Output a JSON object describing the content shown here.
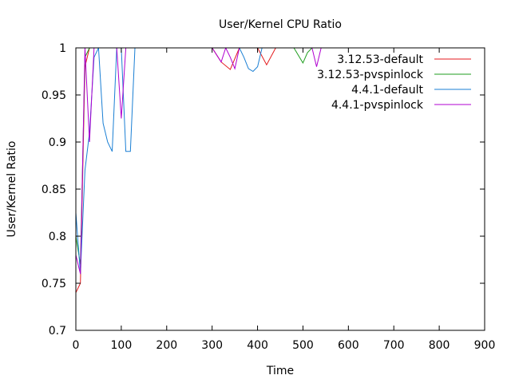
{
  "chart_data": {
    "type": "line",
    "title": "User/Kernel CPU Ratio",
    "xlabel": "Time",
    "ylabel": "User/Kernel Ratio",
    "xlim": [
      0,
      900
    ],
    "ylim": [
      0.7,
      1.0
    ],
    "xticks": [
      0,
      100,
      200,
      300,
      400,
      500,
      600,
      700,
      800,
      900
    ],
    "xtick_labels": [
      "0",
      "100",
      "200",
      "300",
      "400",
      "500",
      "600",
      "700",
      "800",
      "900"
    ],
    "yticks": [
      0.7,
      0.75,
      0.8,
      0.85,
      0.9,
      0.95,
      1.0
    ],
    "ytick_labels": [
      "0.7",
      "0.75",
      "0.8",
      "0.85",
      "0.9",
      "0.95",
      "1"
    ],
    "legend_position": "top-right",
    "grid": false,
    "series": [
      {
        "name": "3.12.53-default",
        "color": "#e41a1c",
        "x": [
          0,
          10,
          20,
          30,
          40,
          50,
          60,
          300,
          320,
          340,
          360,
          380,
          400,
          420,
          440,
          460
        ],
        "y": [
          0.74,
          0.75,
          0.98,
          1.0,
          1.0,
          1.0,
          1.0,
          1.0,
          0.985,
          0.977,
          1.0,
          1.0,
          1.0,
          0.982,
          1.0,
          1.0
        ]
      },
      {
        "name": "3.12.53-pvspinlock",
        "color": "#1f9e1f",
        "x": [
          0,
          10,
          20,
          30,
          40,
          50,
          60,
          460,
          480,
          500,
          510,
          520,
          540,
          560
        ],
        "y": [
          0.8,
          0.77,
          0.99,
          1.0,
          1.0,
          1.0,
          1.0,
          1.0,
          1.0,
          0.984,
          0.995,
          1.0,
          1.0,
          1.0
        ]
      },
      {
        "name": "4.4.1-default",
        "color": "#1a7fd4",
        "x": [
          0,
          10,
          20,
          30,
          40,
          50,
          60,
          70,
          80,
          90,
          100,
          110,
          120,
          130,
          140,
          350,
          360,
          370,
          380,
          390,
          400,
          410,
          420,
          430
        ],
        "y": [
          0.825,
          0.76,
          0.87,
          0.91,
          0.99,
          1.0,
          0.92,
          0.9,
          0.89,
          1.0,
          1.0,
          0.89,
          0.89,
          1.0,
          1.0,
          1.0,
          1.0,
          0.99,
          0.978,
          0.975,
          0.98,
          1.0,
          1.0,
          1.0
        ]
      },
      {
        "name": "4.4.1-pvspinlock",
        "color": "#b000d0",
        "x": [
          0,
          10,
          20,
          30,
          40,
          50,
          60,
          80,
          90,
          100,
          110,
          120,
          130,
          300,
          320,
          330,
          340,
          350,
          360,
          370,
          380,
          520,
          530,
          540,
          550,
          560
        ],
        "y": [
          0.78,
          0.76,
          1.0,
          0.9,
          1.0,
          1.0,
          1.0,
          1.0,
          1.0,
          0.925,
          1.0,
          1.0,
          1.0,
          1.0,
          0.985,
          1.0,
          0.99,
          0.978,
          1.0,
          1.0,
          1.0,
          1.0,
          0.98,
          1.0,
          1.0,
          1.0
        ]
      }
    ]
  }
}
